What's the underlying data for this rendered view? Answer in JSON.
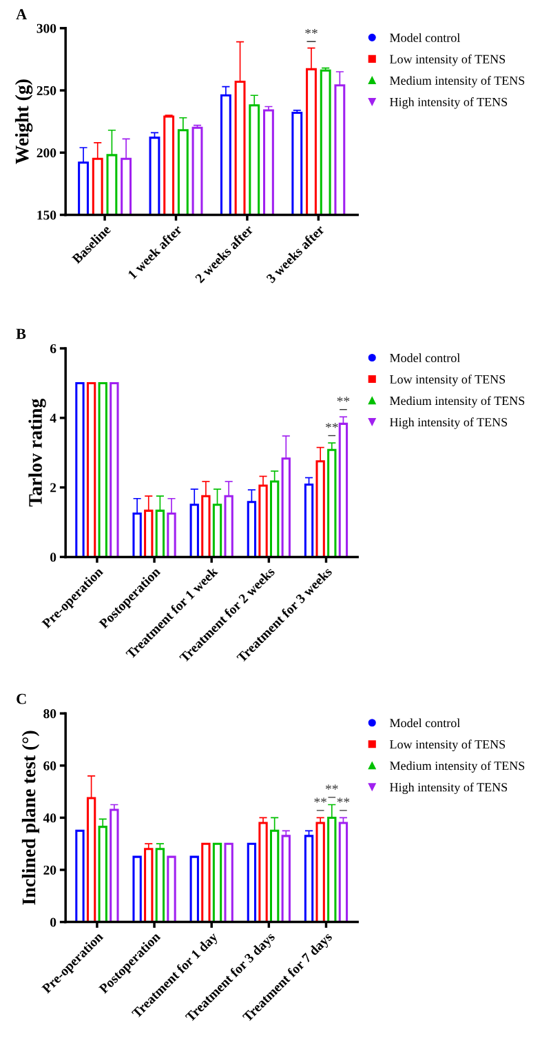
{
  "chart_data": [
    {
      "type": "bar",
      "title": "A",
      "ylabel": "Weight (g)",
      "categories": [
        "Baseline",
        "1 week after",
        "2 weeks after",
        "3 weeks after"
      ],
      "ylim": [
        150,
        300
      ],
      "yticks": [
        150,
        200,
        250,
        300
      ],
      "legend": "right",
      "grid": false,
      "series": [
        {
          "name": "Model control",
          "color": "#0000ff",
          "marker": "circle",
          "values": [
            192,
            212,
            246,
            232
          ],
          "errors": [
            12,
            4,
            7,
            2
          ]
        },
        {
          "name": "Low intensity of TENS",
          "color": "#ff0000",
          "marker": "square",
          "values": [
            195,
            229,
            257,
            267
          ],
          "errors": [
            13,
            1,
            32,
            17
          ],
          "value_labels": [
            null,
            null,
            null,
            "**"
          ]
        },
        {
          "name": "Medium intensity of TENS",
          "color": "#00c000",
          "marker": "triangle",
          "values": [
            198,
            218,
            238,
            266
          ],
          "errors": [
            20,
            10,
            8,
            2
          ]
        },
        {
          "name": "High intensity of TENS",
          "color": "#a020f0",
          "marker": "triangle_down",
          "values": [
            195,
            220,
            234,
            254
          ],
          "errors": [
            16,
            2,
            3,
            11
          ]
        }
      ]
    },
    {
      "type": "bar",
      "title": "B",
      "ylabel": "Tarlov rating",
      "categories": [
        "Pre-operation",
        "Postoperation",
        "Treatment for 1 week",
        "Treatment for 2 weeks",
        "Treatment for 3 weeks"
      ],
      "ylim": [
        0,
        6
      ],
      "yticks": [
        0,
        2,
        4,
        6
      ],
      "legend": "right",
      "grid": false,
      "series": [
        {
          "name": "Model control",
          "color": "#0000ff",
          "marker": "circle",
          "values": [
            5,
            1.25,
            1.5,
            1.58,
            2.08
          ],
          "errors": [
            0,
            0.43,
            0.45,
            0.35,
            0.2
          ]
        },
        {
          "name": "Low intensity of TENS",
          "color": "#ff0000",
          "marker": "square",
          "values": [
            5,
            1.33,
            1.75,
            2.05,
            2.75
          ],
          "errors": [
            0,
            0.42,
            0.42,
            0.27,
            0.4
          ]
        },
        {
          "name": "Medium intensity of TENS",
          "color": "#00c000",
          "marker": "triangle",
          "values": [
            5,
            1.33,
            1.5,
            2.17,
            3.08
          ],
          "errors": [
            0,
            0.42,
            0.45,
            0.3,
            0.2
          ],
          "value_labels": [
            null,
            null,
            null,
            null,
            "**"
          ]
        },
        {
          "name": "High intensity of TENS",
          "color": "#a020f0",
          "marker": "triangle_down",
          "values": [
            5,
            1.25,
            1.75,
            2.83,
            3.83
          ],
          "errors": [
            0,
            0.43,
            0.42,
            0.65,
            0.2
          ],
          "value_labels": [
            null,
            null,
            null,
            null,
            "**"
          ]
        }
      ]
    },
    {
      "type": "bar",
      "title": "C",
      "ylabel": "Inclined plane test (°)",
      "categories": [
        "Pre-operation",
        "Postoperation",
        "Treatment for 1 day",
        "Treatment for 3 days",
        "Treatment for 7 days"
      ],
      "ylim": [
        0,
        80
      ],
      "yticks": [
        0,
        20,
        40,
        60,
        80
      ],
      "legend": "right",
      "grid": false,
      "series": [
        {
          "name": "Model control",
          "color": "#0000ff",
          "marker": "circle",
          "values": [
            35,
            25,
            25,
            30,
            33
          ],
          "errors": [
            0,
            0,
            0,
            0,
            2
          ]
        },
        {
          "name": "Low intensity of TENS",
          "color": "#ff0000",
          "marker": "square",
          "values": [
            47.5,
            28,
            30,
            38,
            38
          ],
          "errors": [
            8.5,
            2,
            0,
            2,
            2
          ],
          "value_labels": [
            null,
            null,
            null,
            null,
            "**"
          ]
        },
        {
          "name": "Medium intensity of TENS",
          "color": "#00c000",
          "marker": "triangle",
          "values": [
            36.5,
            28,
            30,
            35,
            40
          ],
          "errors": [
            3,
            2,
            0,
            5,
            5
          ],
          "value_labels": [
            null,
            null,
            null,
            null,
            "**"
          ]
        },
        {
          "name": "High intensity of TENS",
          "color": "#a020f0",
          "marker": "triangle_down",
          "values": [
            43,
            25,
            30,
            33,
            38
          ],
          "errors": [
            2,
            0,
            0,
            2,
            2
          ],
          "value_labels": [
            null,
            null,
            null,
            null,
            "**"
          ]
        }
      ]
    }
  ]
}
